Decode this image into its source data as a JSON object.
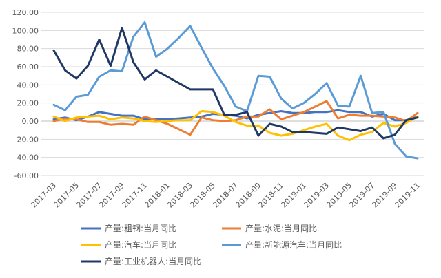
{
  "chart_data": {
    "type": "line",
    "x": [
      "2017-03",
      "2017-04",
      "2017-05",
      "2017-06",
      "2017-07",
      "2017-08",
      "2017-09",
      "2017-10",
      "2017-11",
      "2017-12",
      "2018-01",
      "2018-02",
      "2018-03",
      "2018-04",
      "2018-05",
      "2018-06",
      "2018-07",
      "2018-08",
      "2018-09",
      "2018-10",
      "2018-11",
      "2018-12",
      "2019-01",
      "2019-02",
      "2019-03",
      "2019-04",
      "2019-05",
      "2019-06",
      "2019-07",
      "2019-08",
      "2019-09",
      "2019-10",
      "2019-11"
    ],
    "xtick_labels": [
      "2017-03",
      "2017-05",
      "2017-07",
      "2017-09",
      "2017-11",
      "2018-01",
      "2018-03",
      "2018-05",
      "2018-07",
      "2018-09",
      "2018-11",
      "2019-01",
      "2019-03",
      "2019-05",
      "2019-07",
      "2019-09",
      "2019-11"
    ],
    "ylim": [
      -60,
      120
    ],
    "yticks": [
      "120.00",
      "100.00",
      "80.00",
      "60.00",
      "40.00",
      "20.00",
      "0.00",
      "-20.00",
      "-40.00",
      "-60.00"
    ],
    "ytick_values": [
      120,
      100,
      80,
      60,
      40,
      20,
      0,
      -20,
      -40,
      -60
    ],
    "series": [
      {
        "name": "产量:粗钢:当月同比",
        "color": "#4472C4",
        "values": [
          2,
          4,
          1,
          5,
          10,
          8,
          6,
          6,
          2,
          2,
          2,
          3,
          4,
          5,
          8,
          7,
          6,
          3,
          7,
          9,
          11,
          9,
          9,
          10,
          10,
          12,
          10,
          10,
          5,
          8,
          1,
          1,
          5
        ]
      },
      {
        "name": "产量:水泥:当月同比",
        "color": "#ED7D31",
        "values": [
          0,
          3,
          2,
          -1,
          -1,
          -4,
          -3,
          -4,
          5,
          1,
          -3,
          -9,
          -15,
          4,
          1,
          0,
          1,
          5,
          5,
          13,
          2,
          6,
          10,
          16,
          22,
          3,
          7,
          6,
          6,
          5,
          4,
          0,
          9
        ]
      },
      {
        "name": "产量:汽车:当月同比",
        "color": "#FFC000",
        "values": [
          5,
          0,
          4,
          5,
          6,
          2,
          4,
          3,
          0,
          -1,
          0,
          1,
          1,
          11,
          10,
          6,
          -1,
          -5,
          -5,
          -13,
          -16,
          -14,
          -10,
          -6,
          -3,
          -16,
          -21,
          -15,
          -12,
          -2,
          -6,
          -2,
          5
        ]
      },
      {
        "name": "产量:新能源汽车:当月同比",
        "color": "#5B9BD5",
        "values": [
          18,
          12,
          27,
          29,
          49,
          56,
          55,
          93,
          109,
          71,
          80,
          92,
          105,
          81,
          58,
          39,
          16,
          11,
          50,
          49,
          25,
          14,
          20,
          30,
          42,
          17,
          16,
          50,
          9,
          10,
          -25,
          -39,
          -41
        ]
      },
      {
        "name": "产量:工业机器人:当月同比",
        "color": "#1F3864",
        "values": [
          78,
          56,
          47,
          61,
          90,
          61,
          103,
          65,
          46,
          56,
          49,
          42,
          35,
          35,
          35,
          7,
          7,
          10,
          -16,
          -3,
          -6,
          -12,
          -12,
          -13,
          -14,
          -7,
          -9,
          -11,
          -7,
          -19,
          -15,
          1,
          4
        ]
      }
    ]
  }
}
